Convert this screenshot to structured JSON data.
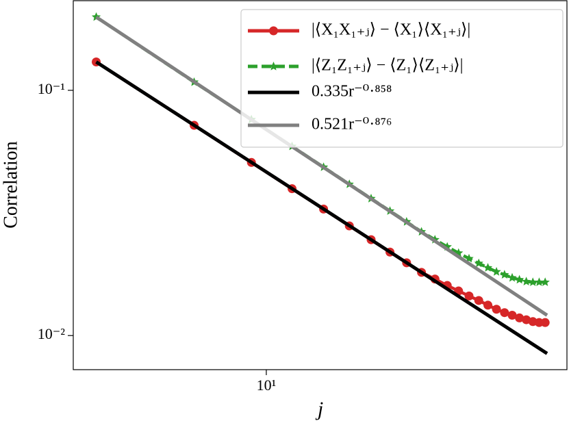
{
  "chart_data": {
    "type": "line",
    "xlabel": "j",
    "ylabel": "Correlation",
    "xscale": "log",
    "yscale": "log",
    "xlim": [
      2.55,
      84
    ],
    "ylim": [
      0.00726,
      0.232
    ],
    "xticks": [
      {
        "value": 10,
        "label": "10¹"
      }
    ],
    "yticks": [
      {
        "value": 0.01,
        "label": "10⁻²"
      },
      {
        "value": 0.1,
        "label": "10⁻¹"
      }
    ],
    "legend": "upper right",
    "series": [
      {
        "name": "|⟨X₁X₁₊ⱼ⟩ − ⟨X₁⟩⟨X₁₊ⱼ⟩|",
        "color": "#d62728",
        "marker": "circle",
        "dash": false,
        "x": [
          3,
          6,
          9,
          12,
          15,
          18,
          21,
          24,
          27,
          30,
          33,
          36,
          39,
          42,
          45,
          48,
          51,
          54,
          57,
          60,
          63,
          66,
          69,
          72
        ],
        "values": [
          0.1305,
          0.072,
          0.0508,
          0.0397,
          0.0328,
          0.028,
          0.0246,
          0.0219,
          0.0198,
          0.0181,
          0.017,
          0.016,
          0.0152,
          0.0145,
          0.0139,
          0.0133,
          0.0128,
          0.0124,
          0.0121,
          0.0118,
          0.0116,
          0.0114,
          0.0113,
          0.0113
        ]
      },
      {
        "name": "|⟨Z₁Z₁₊ⱼ⟩ − ⟨Z₁⟩⟨Z₁₊ⱼ⟩|",
        "color": "#2ca02c",
        "marker": "star",
        "dash": true,
        "x": [
          3,
          6,
          9,
          12,
          15,
          18,
          21,
          24,
          27,
          30,
          33,
          36,
          39,
          42,
          45,
          48,
          51,
          54,
          57,
          60,
          63,
          66,
          69,
          72
        ],
        "values": [
          0.199,
          0.108,
          0.076,
          0.0591,
          0.0486,
          0.0414,
          0.0362,
          0.0322,
          0.0291,
          0.0265,
          0.0246,
          0.023,
          0.0217,
          0.0206,
          0.0197,
          0.0189,
          0.0182,
          0.0177,
          0.0172,
          0.0169,
          0.0166,
          0.0165,
          0.0165,
          0.0165
        ]
      },
      {
        "name": "0.335r⁻⁰·⁸⁵⁸",
        "color": "#000000",
        "marker": "none",
        "dash": false,
        "x": [
          3,
          73
        ],
        "values": [
          0.1305,
          0.00845
        ]
      },
      {
        "name": "0.521r⁻⁰·⁸⁷⁶",
        "color": "#808080",
        "marker": "none",
        "dash": false,
        "x": [
          3,
          73
        ],
        "values": [
          0.199,
          0.0121
        ]
      }
    ]
  }
}
